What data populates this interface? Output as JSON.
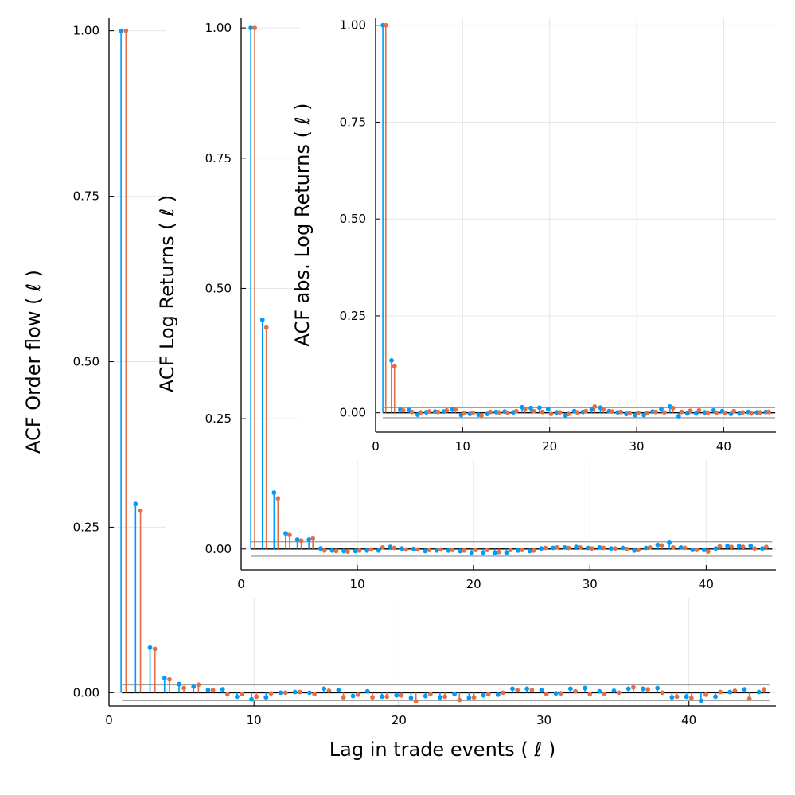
{
  "chart_data": [
    {
      "type": "stem",
      "xlabel": "Lag in trade events ( ℓ )",
      "ylabel": "ACF Order flow ( ℓ )",
      "xlim": [
        0,
        46
      ],
      "ylim": [
        -0.02,
        1.02
      ],
      "xticks": [
        0,
        10,
        20,
        30,
        40
      ],
      "yticks": [
        "0.00",
        "0.25",
        "0.50",
        "0.75",
        "1.00"
      ],
      "grid": true,
      "confidence_band": [
        -0.012,
        0.012
      ],
      "series": [
        {
          "color": "#009af9",
          "values": [
            1.0,
            0.285,
            0.068,
            0.022,
            0.013,
            0.009,
            0.004,
            0.005,
            -0.006,
            -0.01,
            -0.007,
            0.0,
            0.001,
            0.0,
            0.006,
            0.004,
            -0.005,
            0.002,
            -0.006,
            -0.004,
            -0.008,
            -0.005,
            -0.007,
            -0.002,
            -0.008,
            -0.004,
            -0.003,
            0.006,
            0.006,
            0.004,
            -0.001,
            0.006,
            0.007,
            0.002,
            0.003,
            0.006,
            0.006,
            0.007,
            -0.007,
            -0.006,
            -0.012,
            -0.006,
            0.001,
            0.005,
            0.001
          ]
        },
        {
          "color": "#e26f46",
          "values": [
            1.0,
            0.275,
            0.066,
            0.02,
            0.007,
            0.012,
            0.004,
            -0.002,
            -0.002,
            -0.006,
            -0.001,
            0.0,
            0.001,
            -0.002,
            0.003,
            -0.007,
            -0.003,
            -0.007,
            -0.006,
            -0.004,
            -0.013,
            -0.002,
            -0.006,
            -0.011,
            -0.007,
            -0.002,
            0.0,
            0.004,
            0.004,
            -0.002,
            -0.001,
            0.002,
            -0.002,
            -0.002,
            0.0,
            0.008,
            0.005,
            0.0,
            -0.006,
            -0.008,
            -0.003,
            0.001,
            0.003,
            -0.009,
            0.005
          ]
        }
      ]
    },
    {
      "type": "stem",
      "xlabel": "",
      "ylabel": "ACF Log Returns ( ℓ )",
      "xlim": [
        0,
        46
      ],
      "ylim": [
        -0.04,
        1.02
      ],
      "xticks": [
        0,
        10,
        20,
        30,
        40
      ],
      "yticks": [
        "0.00",
        "0.25",
        "0.50",
        "0.75",
        "1.00"
      ],
      "grid": true,
      "confidence_band": [
        -0.014,
        0.014
      ],
      "series": [
        {
          "color": "#009af9",
          "values": [
            1.0,
            0.44,
            0.108,
            0.03,
            0.018,
            0.018,
            0.001,
            -0.003,
            -0.004,
            -0.004,
            -0.003,
            -0.003,
            0.004,
            0.001,
            0.0,
            -0.004,
            -0.003,
            -0.003,
            -0.004,
            -0.008,
            -0.007,
            -0.008,
            -0.007,
            -0.003,
            -0.004,
            0.001,
            0.002,
            0.003,
            0.004,
            0.002,
            0.003,
            0.001,
            0.002,
            -0.003,
            0.002,
            0.008,
            0.012,
            0.003,
            -0.002,
            -0.002,
            0.001,
            0.006,
            0.006,
            0.006,
            0.001
          ]
        },
        {
          "color": "#e26f46",
          "values": [
            1.0,
            0.425,
            0.097,
            0.027,
            0.016,
            0.02,
            -0.003,
            -0.004,
            -0.005,
            -0.003,
            -0.001,
            0.003,
            0.002,
            -0.001,
            -0.001,
            -0.002,
            -0.001,
            -0.002,
            -0.003,
            -0.002,
            -0.002,
            -0.006,
            -0.002,
            -0.002,
            -0.003,
            0.002,
            0.003,
            0.002,
            0.003,
            0.001,
            0.002,
            0.001,
            0.0,
            -0.002,
            0.003,
            0.007,
            0.003,
            0.002,
            -0.002,
            -0.005,
            0.005,
            0.004,
            0.004,
            0.001,
            0.004
          ]
        }
      ]
    },
    {
      "type": "stem",
      "xlabel": "",
      "ylabel": "ACF abs. Log Returns ( ℓ )",
      "xlim": [
        0,
        46
      ],
      "ylim": [
        -0.05,
        1.02
      ],
      "xticks": [
        0,
        10,
        20,
        30,
        40
      ],
      "yticks": [
        "0.00",
        "0.25",
        "0.50",
        "0.75",
        "1.00"
      ],
      "grid": true,
      "confidence_band": [
        -0.013,
        0.013
      ],
      "series": [
        {
          "color": "#009af9",
          "values": [
            1.0,
            0.135,
            0.008,
            0.007,
            -0.005,
            0.001,
            0.003,
            0.003,
            0.009,
            -0.006,
            -0.003,
            -0.005,
            -0.003,
            0.002,
            0.003,
            0.001,
            0.014,
            0.012,
            0.013,
            0.009,
            0.001,
            -0.007,
            0.004,
            0.002,
            0.008,
            0.013,
            0.004,
            0.001,
            -0.003,
            -0.006,
            -0.006,
            0.003,
            0.01,
            0.016,
            -0.009,
            -0.002,
            -0.002,
            0.001,
            0.006,
            0.004,
            -0.003,
            -0.002,
            0.002,
            0.001,
            0.002
          ]
        },
        {
          "color": "#e26f46",
          "values": [
            1.0,
            0.12,
            0.006,
            0.002,
            0.001,
            0.003,
            0.002,
            0.006,
            0.008,
            -0.001,
            0.0,
            -0.007,
            0.002,
            0.001,
            0.0,
            0.004,
            0.01,
            0.004,
            0.002,
            -0.003,
            0.001,
            -0.003,
            0.001,
            0.004,
            0.016,
            0.009,
            0.003,
            0.002,
            -0.001,
            0.0,
            -0.001,
            0.002,
            0.001,
            0.012,
            0.002,
            0.005,
            0.006,
            0.0,
            0.0,
            -0.001,
            0.004,
            0.001,
            -0.002,
            0.001,
            0.002
          ]
        }
      ]
    }
  ]
}
